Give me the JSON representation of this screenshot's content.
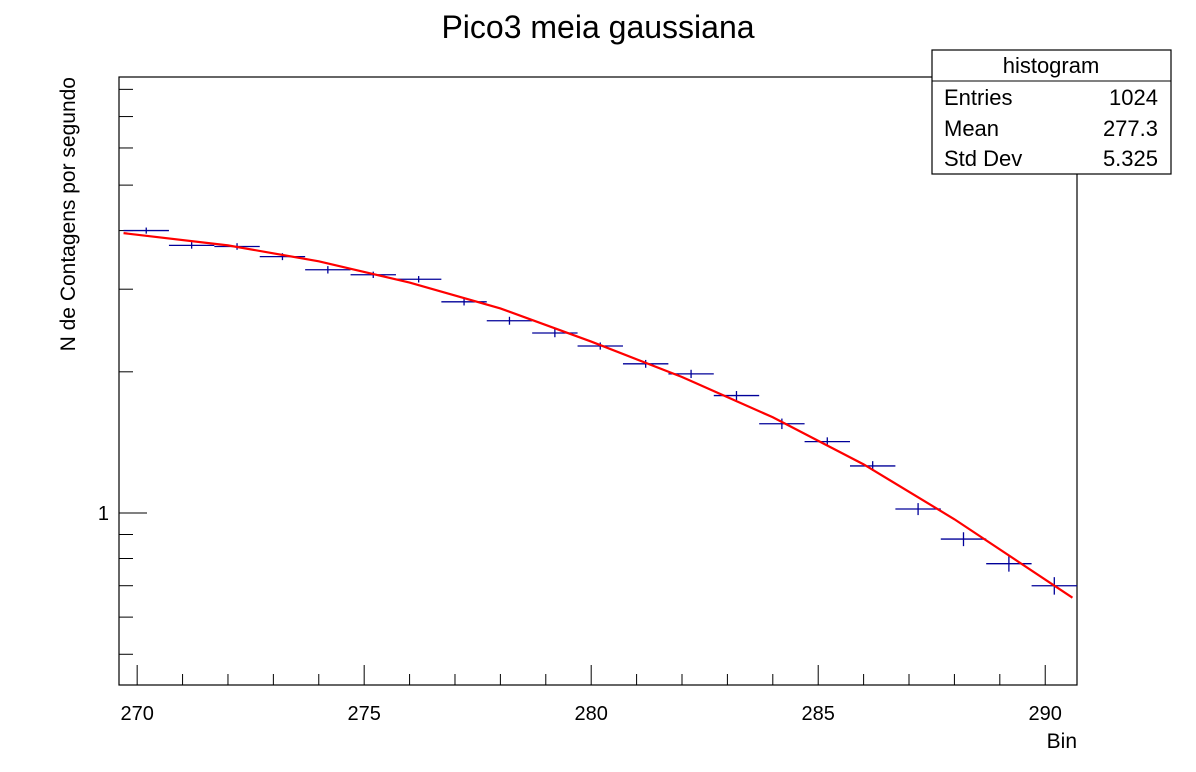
{
  "chart_data": {
    "type": "scatter",
    "title": "Pico3 meia gaussiana",
    "xlabel": "Bin",
    "ylabel": "N de Contagens por segundo",
    "xlim": [
      269.6,
      290.7
    ],
    "ylim": [
      0.43,
      8.5
    ],
    "y_scale": "log",
    "x_ticks": [
      270,
      275,
      280,
      285,
      290
    ],
    "y_ticks_labeled": [
      1
    ],
    "grid": false,
    "legend": "none",
    "colors": {
      "points": "#000099",
      "fit": "#ff0000"
    },
    "series": [
      {
        "kind": "histogram-points",
        "bin_width": 1.0,
        "x": [
          270.2,
          271.2,
          272.2,
          273.2,
          274.2,
          275.2,
          276.2,
          277.2,
          278.2,
          279.2,
          280.2,
          281.2,
          282.2,
          283.2,
          284.2,
          285.2,
          286.2,
          287.2,
          288.2,
          289.2,
          290.2
        ],
        "y": [
          4.0,
          3.72,
          3.7,
          3.52,
          3.3,
          3.22,
          3.15,
          2.82,
          2.57,
          2.42,
          2.27,
          2.08,
          1.98,
          1.78,
          1.55,
          1.42,
          1.26,
          1.02,
          0.88,
          0.78,
          0.7
        ],
        "y_err": [
          0.06,
          0.06,
          0.06,
          0.06,
          0.06,
          0.05,
          0.05,
          0.05,
          0.05,
          0.05,
          0.04,
          0.04,
          0.04,
          0.04,
          0.04,
          0.03,
          0.03,
          0.03,
          0.03,
          0.03,
          0.03
        ]
      },
      {
        "kind": "fit-curve",
        "x": [
          269.7,
          272.0,
          274.0,
          276.0,
          278.0,
          280.0,
          282.0,
          284.0,
          286.0,
          288.0,
          290.6
        ],
        "y": [
          3.95,
          3.72,
          3.44,
          3.1,
          2.73,
          2.32,
          1.95,
          1.6,
          1.27,
          0.97,
          0.66
        ]
      }
    ],
    "stats_box": {
      "title": "histogram",
      "rows": [
        {
          "label": "Entries",
          "value": "1024"
        },
        {
          "label": "Mean",
          "value": "277.3"
        },
        {
          "label": "Std Dev",
          "value": "5.325"
        }
      ]
    }
  }
}
